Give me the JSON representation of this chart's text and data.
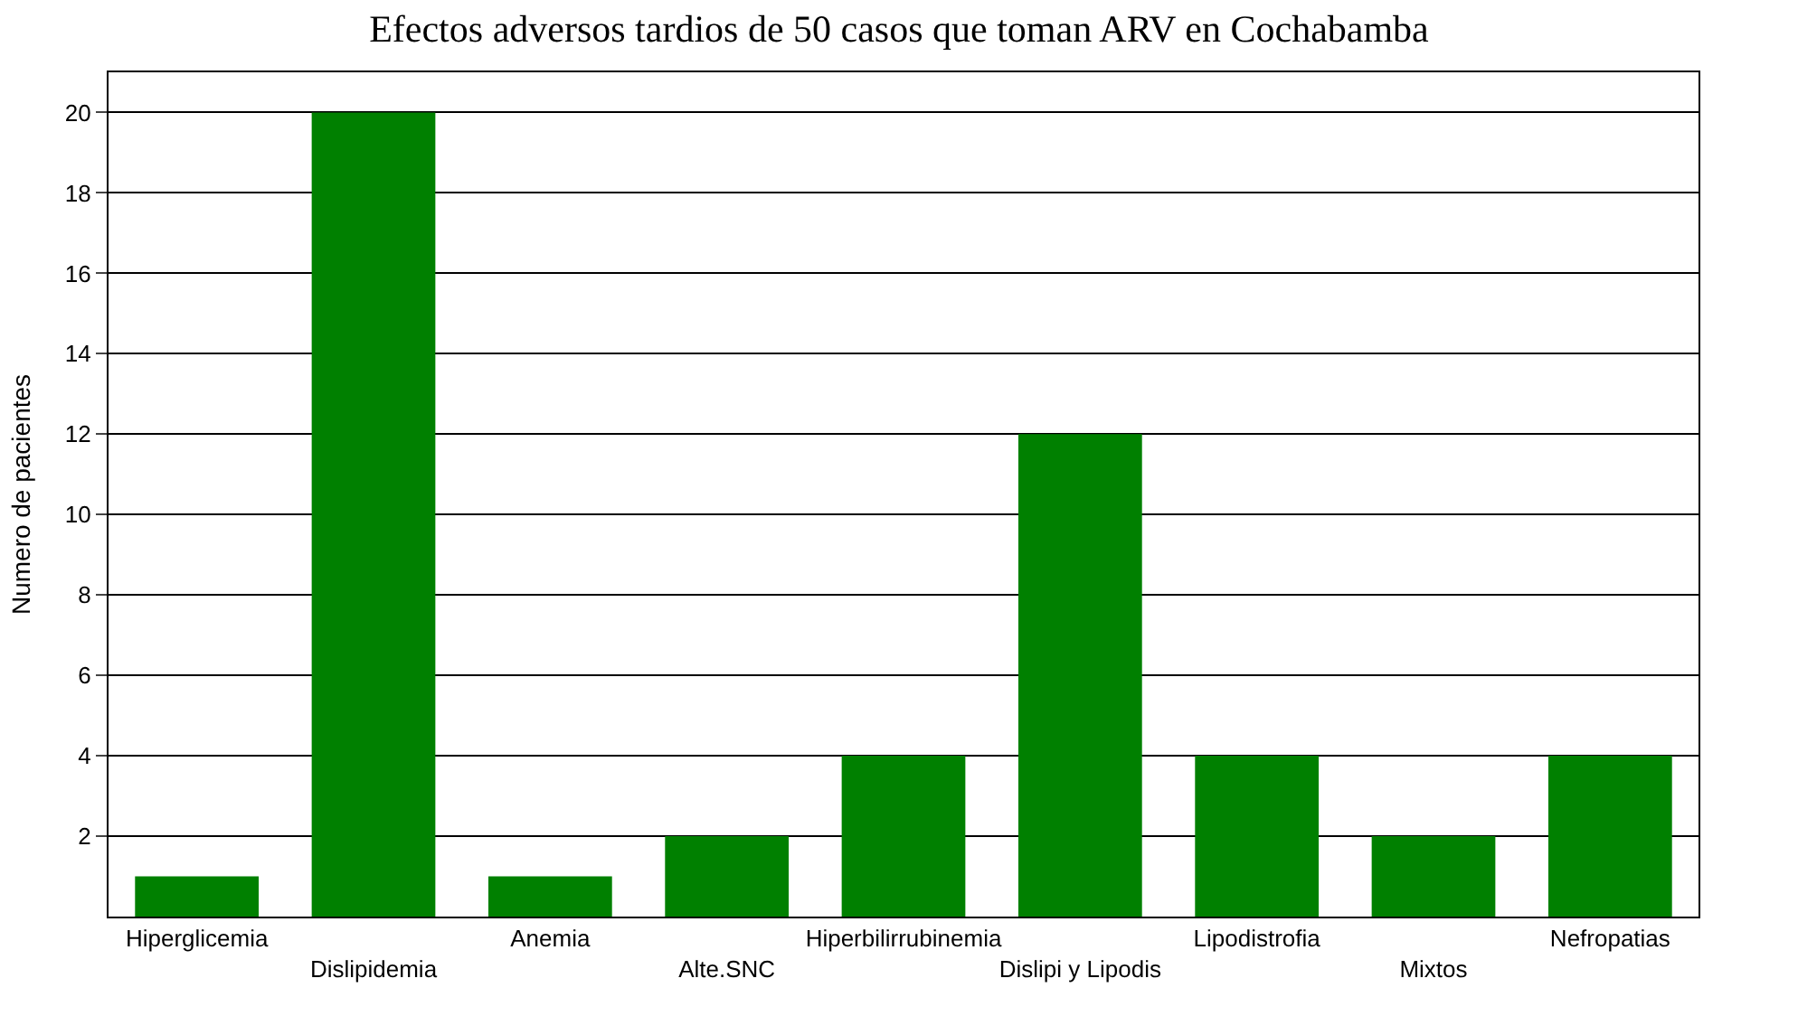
{
  "chart_data": {
    "type": "bar",
    "title": "Efectos adversos tardios de 50 casos que toman ARV en Cochabamba",
    "ylabel": "Numero de pacientes",
    "categories": [
      "Hiperglicemia",
      "Dislipidemia",
      "Anemia",
      "Alte.SNC",
      "Hiperbilirrubinemia",
      "Dislipi y Lipodis",
      "Lipodistrofia",
      "Mixtos",
      "Nefropatias"
    ],
    "values": [
      1,
      20,
      1,
      2,
      4,
      12,
      4,
      2,
      4
    ],
    "color": "#008000",
    "ylim": [
      0,
      21
    ],
    "yticks": [
      2,
      4,
      6,
      8,
      10,
      12,
      14,
      16,
      18,
      20
    ],
    "grid": "y"
  }
}
